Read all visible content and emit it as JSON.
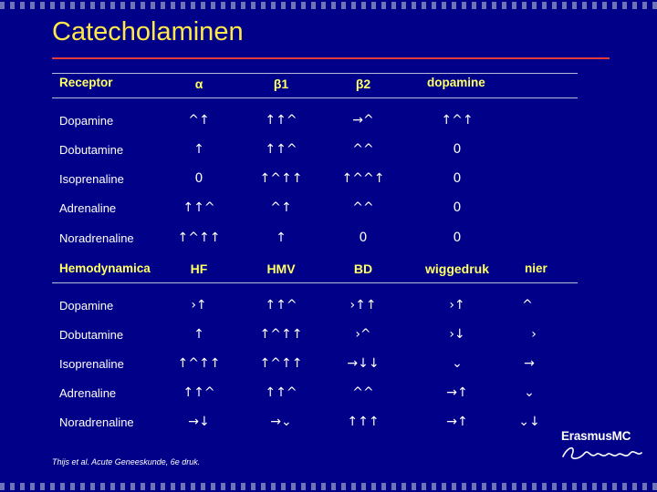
{
  "title": "Catecholaminen",
  "table1": {
    "header": [
      "Receptor",
      "α",
      "β1",
      "β2",
      "dopamine"
    ],
    "rows": [
      {
        "label": "Dopamine",
        "values": [
          "^↑",
          "↑↑^",
          "→^",
          "↑^↑"
        ]
      },
      {
        "label": "Dobutamine",
        "values": [
          "↑",
          "↑↑^",
          "^^",
          "0"
        ]
      },
      {
        "label": "Isoprenaline",
        "values": [
          "0",
          "↑^↑↑",
          "↑^^↑",
          "0"
        ]
      },
      {
        "label": "Adrenaline",
        "values": [
          "↑↑^",
          "^↑",
          "^^",
          "0"
        ]
      },
      {
        "label": "Noradrenaline",
        "values": [
          "↑^↑↑",
          "↑",
          "0",
          "0"
        ]
      }
    ]
  },
  "table2": {
    "header": [
      "Hemodynamica",
      "HF",
      "HMV",
      "BD",
      "wiggedruk",
      "nier"
    ],
    "rows": [
      {
        "label": "Dopamine",
        "values": [
          "›↑",
          "↑↑^",
          "›↑↑",
          "›↑",
          "^"
        ]
      },
      {
        "label": "Dobutamine",
        "values": [
          "↑",
          "↑^↑↑",
          "›^",
          "›↓",
          "›"
        ]
      },
      {
        "label": "Isoprenaline",
        "values": [
          "↑^↑↑",
          "↑^↑↑",
          "→↓↓",
          "⌄",
          "→"
        ]
      },
      {
        "label": "Adrenaline",
        "values": [
          "↑↑^",
          "↑↑^",
          "^^",
          "→↑",
          "⌄"
        ]
      },
      {
        "label": "Noradrenaline",
        "values": [
          "→↓",
          "→⌄",
          "↑↑↑",
          "→↑",
          "⌄↓"
        ]
      }
    ]
  },
  "citation": "Thijs et al. Acute Geneeskunde, 6e druk.",
  "logo": {
    "name": "ErasmusMC",
    "script": "Ezafung"
  },
  "colors": {
    "background": "#000088",
    "title": "#ffe84a",
    "header": "#ffff66",
    "rule": "#e03a3a"
  }
}
